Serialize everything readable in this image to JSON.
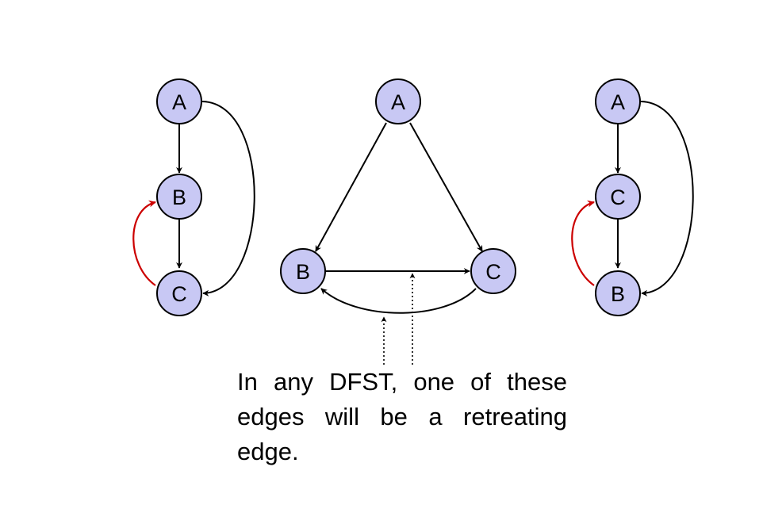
{
  "graphs": [
    {
      "nodes": {
        "top": "A",
        "middle": "B",
        "bottom": "C"
      }
    },
    {
      "nodes": {
        "top": "A",
        "left": "B",
        "right": "C"
      }
    },
    {
      "nodes": {
        "top": "A",
        "middle": "C",
        "bottom": "B"
      }
    }
  ],
  "caption": "In any DFST, one of these edges will be a retreating edge.",
  "colors": {
    "node_fill": "#c8c8f4",
    "retreating_edge": "#cc0000",
    "edge": "#000000"
  }
}
